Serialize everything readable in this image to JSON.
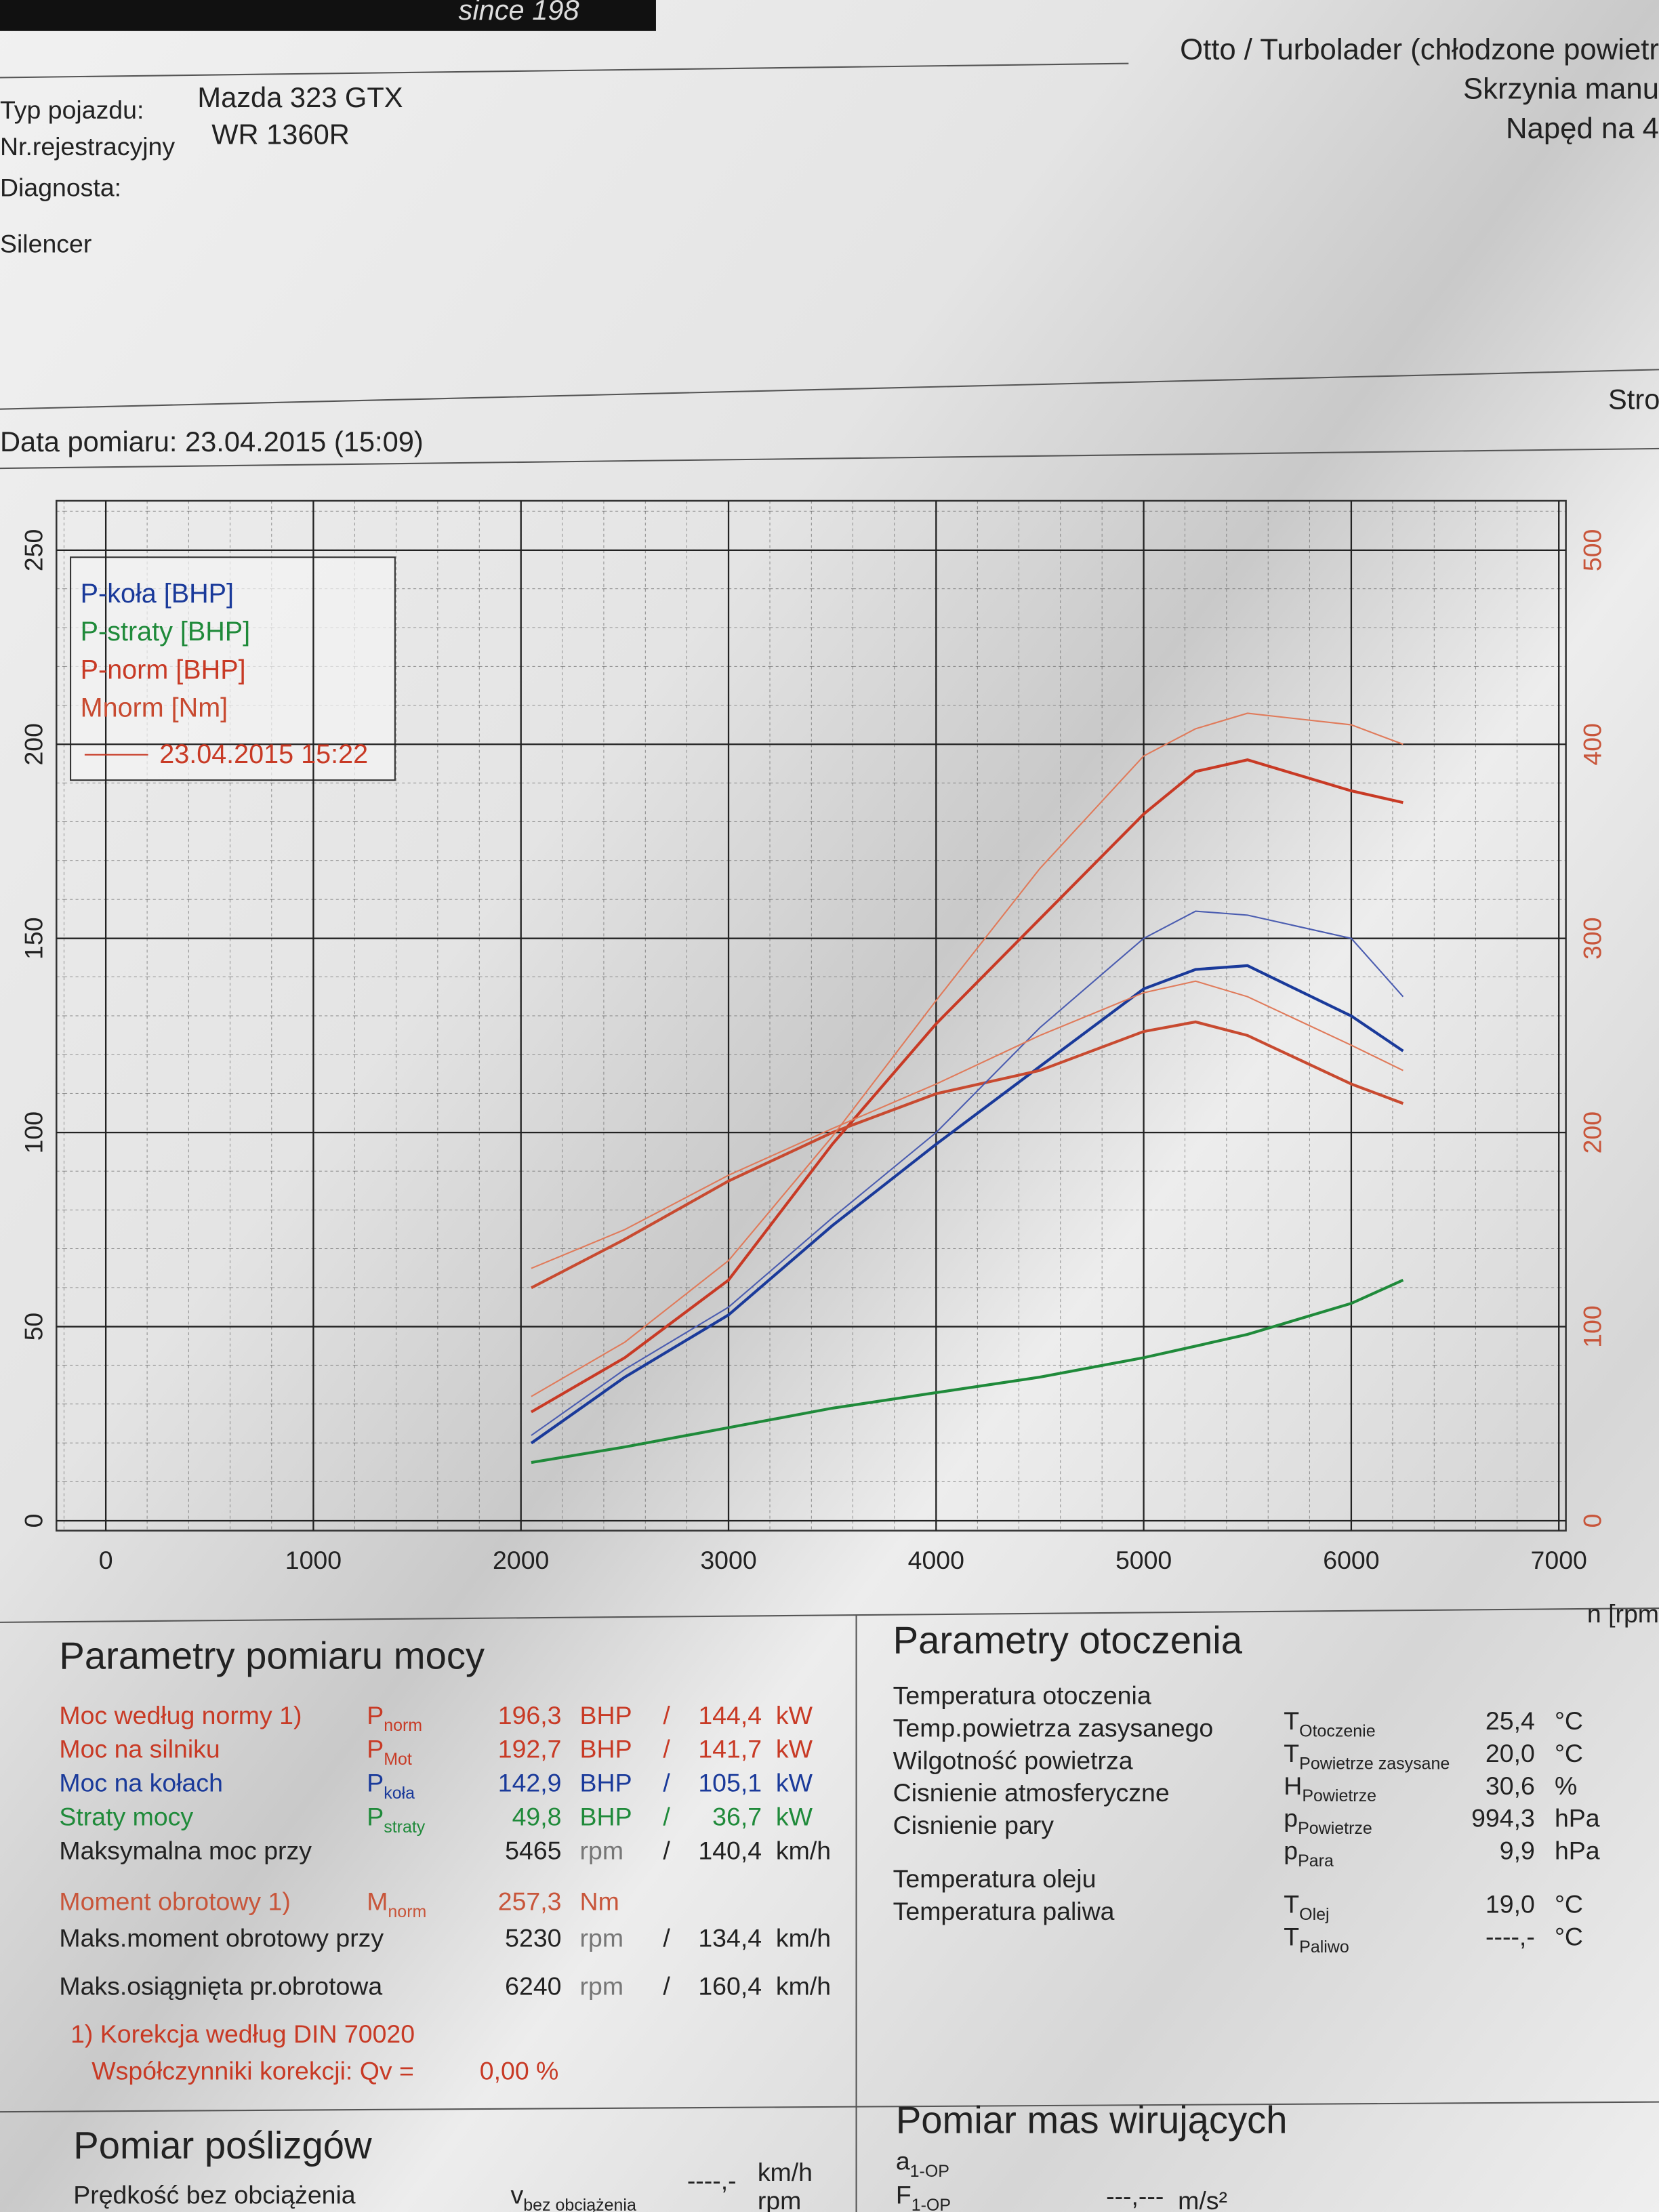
{
  "header": {
    "logo": "since 198",
    "engine": "Otto / Turbolader (chłodzone powietr",
    "gearbox": "Skrzynia manu",
    "drive": "Napęd na 4",
    "vehicle_label": "Typ pojazdu:",
    "vehicle": "Mazda 323 GTX",
    "reg_label": "Nr.rejestracyjny",
    "reg": "WR 1360R",
    "diag_label": "Diagnosta:",
    "note": "Silencer",
    "page": "Stro",
    "date": "Data pomiaru: 23.04.2015 (15:09)"
  },
  "chart_data": {
    "type": "line",
    "x_label": "n [rpm",
    "legend": "upper left",
    "legend_run": "23.04.2015 15:22",
    "grid": true,
    "x": [
      2050,
      2500,
      3000,
      3500,
      4000,
      4500,
      5000,
      5250,
      5500,
      6000,
      6250
    ],
    "xlim": [
      0,
      7000
    ],
    "xticks": [
      0,
      1000,
      2000,
      3000,
      4000,
      5000,
      6000,
      7000
    ],
    "ylim": [
      0,
      250
    ],
    "yticks": [
      0,
      50,
      100,
      150,
      200,
      250
    ],
    "y2lim": [
      0,
      500
    ],
    "y2ticks": [
      0,
      100,
      200,
      300,
      400,
      500
    ],
    "y2_color": "#c8553a",
    "series": [
      {
        "name": "P-koła [BHP]",
        "color": "#1a3a9a",
        "values": [
          20,
          37,
          53,
          76,
          97,
          117,
          137,
          142,
          143,
          130,
          121
        ]
      },
      {
        "name": "P-straty [BHP]",
        "color": "#1f8a3a",
        "values": [
          15,
          19,
          24,
          29,
          33,
          37,
          42,
          45,
          48,
          56,
          62
        ]
      },
      {
        "name": "P-norm [BHP]",
        "color": "#c83a25",
        "values": [
          28,
          42,
          62,
          97,
          128,
          155,
          182,
          193,
          196,
          188,
          185
        ]
      },
      {
        "name": "Mnorm [Nm]",
        "color": "#c84a30",
        "axis": "y2",
        "values": [
          120,
          145,
          175,
          200,
          220,
          232,
          252,
          257,
          250,
          225,
          215
        ]
      },
      {
        "color": "#4a5cb0",
        "width": 1,
        "values": [
          22,
          39,
          55,
          78,
          100,
          127,
          150,
          157,
          156,
          150,
          135
        ]
      },
      {
        "color": "#e07a5a",
        "width": 1,
        "values": [
          32,
          46,
          67,
          99,
          134,
          168,
          197,
          204,
          208,
          205,
          200
        ]
      },
      {
        "color": "#e07a5a",
        "width": 1,
        "axis": "y2",
        "values": [
          130,
          150,
          178,
          202,
          225,
          250,
          272,
          278,
          270,
          245,
          232
        ]
      }
    ]
  },
  "power": {
    "title": "Parametry pomiaru mocy",
    "rows": [
      {
        "label": "Moc według normy 1)",
        "symbol": {
          "main": "P",
          "sub": "norm"
        },
        "value": "196,3",
        "unit": "BHP",
        "sep": "/",
        "value2": "144,4",
        "unit2": "kW",
        "color": "#c83a25"
      },
      {
        "label": "Moc na silniku",
        "symbol": {
          "main": "P",
          "sub": "Mot"
        },
        "value": "192,7",
        "unit": "BHP",
        "sep": "/",
        "value2": "141,7",
        "unit2": "kW",
        "color": "#c83a25"
      },
      {
        "label": "Moc na kołach",
        "symbol": {
          "main": "P",
          "sub": "koła"
        },
        "value": "142,9",
        "unit": "BHP",
        "sep": "/",
        "value2": "105,1",
        "unit2": "kW",
        "color": "#1a3a9a"
      },
      {
        "label": "Straty mocy",
        "symbol": {
          "main": "P",
          "sub": "straty"
        },
        "value": "49,8",
        "unit": "BHP",
        "sep": "/",
        "value2": "36,7",
        "unit2": "kW",
        "color": "#1f8a3a"
      },
      {
        "label": "Maksymalna moc przy",
        "value": "5465",
        "unit": "rpm",
        "sep": "/",
        "value2": "140,4",
        "unit2": "km/h",
        "color": "#222"
      },
      {
        "label": "Moment obrotowy 1)",
        "symbol": {
          "main": "M",
          "sub": "norm"
        },
        "value": "257,3",
        "unit": "Nm",
        "color": "#c8553a"
      },
      {
        "label": "Maks.moment obrotowy przy",
        "value": "5230",
        "unit": "rpm",
        "sep": "/",
        "value2": "134,4",
        "unit2": "km/h",
        "color": "#222"
      },
      {
        "label": "Maks.osiągnięta pr.obrotowa",
        "value": "6240",
        "unit": "rpm",
        "sep": "/",
        "value2": "160,4",
        "unit2": "km/h",
        "color": "#222"
      }
    ],
    "footnote": "1) Korekcja według DIN 70020",
    "coef_label": "Współczynniki korekcji: Qv =",
    "coef_value": "0,00 %"
  },
  "ambient": {
    "title": "Parametry otoczenia",
    "rows": [
      {
        "label": "Temperatura otoczenia",
        "symbol": {
          "main": "T",
          "sub": "Otoczenie"
        },
        "value": "25,4",
        "unit": "°C"
      },
      {
        "label": "Temp.powietrza zasysanego",
        "symbol": {
          "main": "T",
          "sub": "Powietrze zasysane"
        },
        "value": "20,0",
        "unit": "°C"
      },
      {
        "label": "Wilgotność powietrza",
        "symbol": {
          "main": "H",
          "sub": "Powietrze"
        },
        "value": "30,6",
        "unit": "%"
      },
      {
        "label": "Cisnienie atmosferyczne",
        "symbol": {
          "main": "p",
          "sub": "Powietrze"
        },
        "value": "994,3",
        "unit": "hPa"
      },
      {
        "label": "Cisnienie pary",
        "symbol": {
          "main": "p",
          "sub": "Para"
        },
        "value": "9,9",
        "unit": "hPa"
      },
      {
        "label": "Temperatura oleju",
        "symbol": {
          "main": "T",
          "sub": "Olej"
        },
        "value": "19,0",
        "unit": "°C"
      },
      {
        "label": "Temperatura paliwa",
        "symbol": {
          "main": "T",
          "sub": "Paliwo"
        },
        "value": "----,-",
        "unit": "°C"
      }
    ]
  },
  "slip": {
    "title": "Pomiar poślizgów",
    "label": "Prędkość bez obciążenia",
    "symbol": {
      "main": "v",
      "sub": "bez obciążenia"
    },
    "value": "----,-",
    "unit": "km/h",
    "unit2": "rpm"
  },
  "masses": {
    "title": "Pomiar mas wirujących",
    "symbol1": {
      "main": "a",
      "sub": "1-OP"
    },
    "symbol2": {
      "main": "F",
      "sub": "1-OP"
    },
    "value": "---,---",
    "unit": "m/s²"
  }
}
